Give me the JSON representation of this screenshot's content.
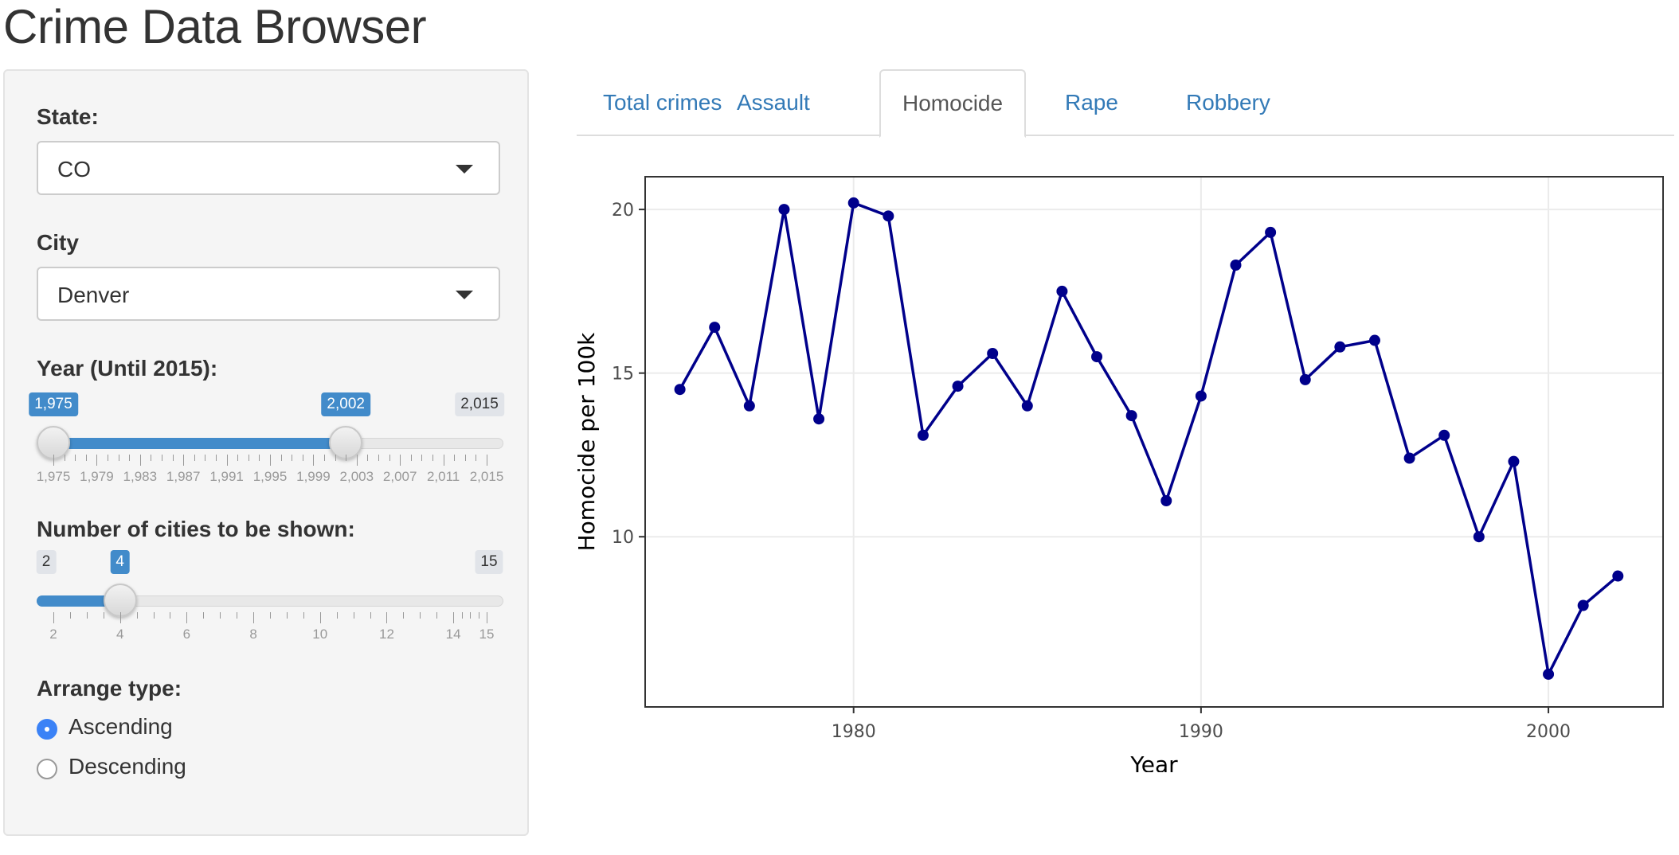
{
  "app": {
    "title": "Crime Data Browser"
  },
  "sidebar": {
    "state": {
      "label": "State:",
      "value": "CO"
    },
    "city": {
      "label": "City",
      "value": "Denver"
    },
    "year": {
      "label": "Year (Until 2015):",
      "min": 1975,
      "max": 2015,
      "from": 1975,
      "to": 2002,
      "min_label": "1,975",
      "max_label": "2,015",
      "from_label": "1,975",
      "to_label": "2,002",
      "tick_labels": [
        "1,975",
        "1,979",
        "1,983",
        "1,987",
        "1,991",
        "1,995",
        "1,999",
        "2,003",
        "2,007",
        "2,011",
        "2,015"
      ],
      "tick_values": [
        1975,
        1979,
        1983,
        1987,
        1991,
        1995,
        1999,
        2003,
        2007,
        2011,
        2015
      ]
    },
    "cities": {
      "label": "Number of cities to be shown:",
      "min": 2,
      "max": 15,
      "value": 4,
      "min_label": "2",
      "max_label": "15",
      "value_label": "4",
      "tick_labels": [
        "2",
        "4",
        "6",
        "8",
        "10",
        "12",
        "14",
        "15"
      ],
      "tick_values": [
        2,
        4,
        6,
        8,
        10,
        12,
        14,
        15
      ]
    },
    "arrange": {
      "label": "Arrange type:",
      "options": [
        {
          "label": "Ascending",
          "checked": true
        },
        {
          "label": "Descending",
          "checked": false
        }
      ]
    }
  },
  "tabs": [
    {
      "label": "Total crimes",
      "active": false
    },
    {
      "label": "Assault",
      "active": false
    },
    {
      "label": "Homocide",
      "active": true
    },
    {
      "label": "Rape",
      "active": false
    },
    {
      "label": "Robbery",
      "active": false
    }
  ],
  "chart_data": {
    "type": "line",
    "title": "",
    "xlabel": "Year",
    "ylabel": "Homocide per 100k",
    "xlim": [
      1974,
      2003.3
    ],
    "ylim": [
      4.8,
      21.0
    ],
    "x_ticks": [
      1980,
      1990,
      2000
    ],
    "y_ticks": [
      10,
      15,
      20
    ],
    "grid": true,
    "color": "#00008b",
    "x": [
      1975,
      1976,
      1977,
      1978,
      1979,
      1980,
      1981,
      1982,
      1983,
      1984,
      1985,
      1986,
      1987,
      1988,
      1989,
      1990,
      1991,
      1992,
      1993,
      1994,
      1995,
      1996,
      1997,
      1998,
      1999,
      2000,
      2001,
      2002
    ],
    "values": [
      14.5,
      16.4,
      14.0,
      20.0,
      13.6,
      20.2,
      19.8,
      13.1,
      14.6,
      15.6,
      14.0,
      17.5,
      15.5,
      13.7,
      11.1,
      14.3,
      18.3,
      19.3,
      14.8,
      15.8,
      16.0,
      12.4,
      13.1,
      10.0,
      12.3,
      5.8,
      7.9,
      8.8
    ]
  }
}
